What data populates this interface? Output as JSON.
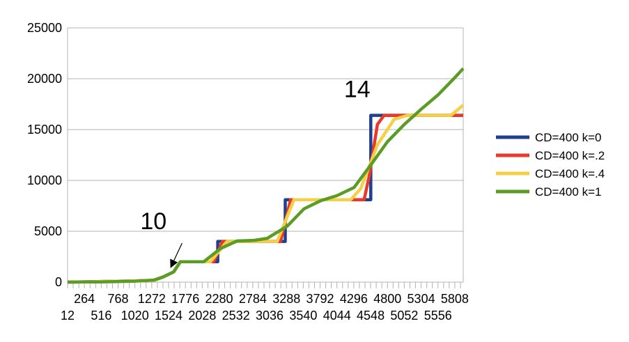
{
  "chart_data": {
    "type": "line",
    "title": "",
    "xlabel": "",
    "ylabel": "",
    "ylim": [
      0,
      25000
    ],
    "yticks": [
      "0",
      "5000",
      "10000",
      "15000",
      "20000",
      "25000"
    ],
    "xlim": [
      12,
      5934
    ],
    "xticks_upper": [
      "264",
      "768",
      "1272",
      "1776",
      "2280",
      "2784",
      "3288",
      "3792",
      "4296",
      "4800",
      "5304",
      "5808"
    ],
    "xticks_lower": [
      "12",
      "516",
      "1020",
      "1524",
      "2028",
      "2532",
      "3036",
      "3540",
      "4044",
      "4548",
      "5052",
      "5556"
    ],
    "grid": "horizontal",
    "legend_position": "right",
    "annotations": [
      {
        "text": "10",
        "x": 1100,
        "y": 5200,
        "arrow_to": [
          1560,
          1500
        ]
      },
      {
        "text": "14",
        "x": 4150,
        "y": 18200
      }
    ],
    "series": [
      {
        "name": "CD=400 k=0",
        "color": "#1f3f8f",
        "points": [
          [
            12,
            0
          ],
          [
            1300,
            150
          ],
          [
            1440,
            500
          ],
          [
            1600,
            1000
          ],
          [
            1700,
            2000
          ],
          [
            2260,
            2000
          ],
          [
            2260,
            4000
          ],
          [
            3270,
            4000
          ],
          [
            3270,
            8100
          ],
          [
            4550,
            8100
          ],
          [
            4550,
            16400
          ],
          [
            5934,
            16400
          ]
        ]
      },
      {
        "name": "CD=400 k=.2",
        "color": "#e83a2a",
        "points": [
          [
            12,
            0
          ],
          [
            1300,
            150
          ],
          [
            1440,
            500
          ],
          [
            1600,
            1000
          ],
          [
            1700,
            2000
          ],
          [
            2200,
            2000
          ],
          [
            2330,
            4000
          ],
          [
            3200,
            4000
          ],
          [
            3350,
            8100
          ],
          [
            4450,
            8100
          ],
          [
            4530,
            10500
          ],
          [
            4650,
            15500
          ],
          [
            4750,
            16400
          ],
          [
            5934,
            16400
          ]
        ]
      },
      {
        "name": "CD=400 k=.4",
        "color": "#f5cf45",
        "points": [
          [
            12,
            0
          ],
          [
            1300,
            150
          ],
          [
            1440,
            500
          ],
          [
            1600,
            1000
          ],
          [
            1700,
            2000
          ],
          [
            2150,
            2000
          ],
          [
            2400,
            4000
          ],
          [
            3150,
            4000
          ],
          [
            3400,
            8100
          ],
          [
            4250,
            8100
          ],
          [
            4400,
            9200
          ],
          [
            4650,
            13500
          ],
          [
            4900,
            16000
          ],
          [
            5100,
            16400
          ],
          [
            5750,
            16400
          ],
          [
            5934,
            17400
          ]
        ]
      },
      {
        "name": "CD=400 k=1",
        "color": "#5a9c25",
        "points": [
          [
            12,
            0
          ],
          [
            500,
            20
          ],
          [
            1000,
            80
          ],
          [
            1300,
            200
          ],
          [
            1440,
            500
          ],
          [
            1600,
            1000
          ],
          [
            1700,
            2000
          ],
          [
            2050,
            2000
          ],
          [
            2300,
            3300
          ],
          [
            2550,
            4050
          ],
          [
            2800,
            4100
          ],
          [
            3000,
            4300
          ],
          [
            3300,
            5500
          ],
          [
            3550,
            7200
          ],
          [
            3800,
            8000
          ],
          [
            4044,
            8500
          ],
          [
            4300,
            9300
          ],
          [
            4548,
            11500
          ],
          [
            4800,
            13800
          ],
          [
            5052,
            15500
          ],
          [
            5304,
            17000
          ],
          [
            5556,
            18400
          ],
          [
            5808,
            20100
          ],
          [
            5934,
            21000
          ]
        ]
      }
    ]
  }
}
